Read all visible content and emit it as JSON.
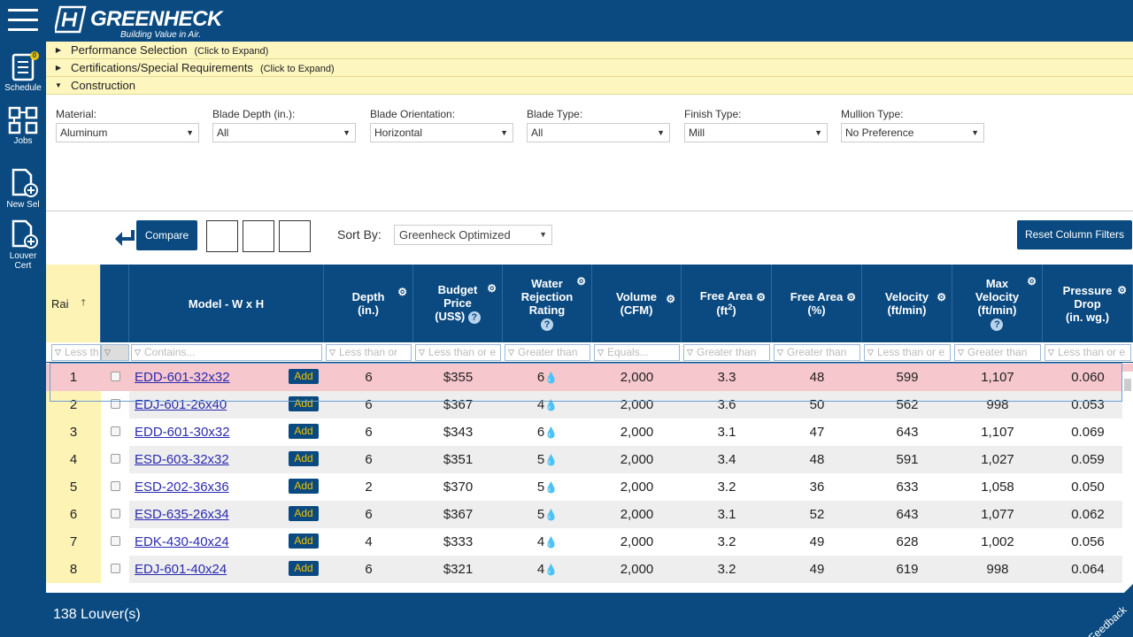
{
  "nav": {
    "items": [
      {
        "label": "Schedule",
        "icon": "schedule-icon",
        "badge": "0"
      },
      {
        "label": "Jobs",
        "icon": "jobs-icon"
      },
      {
        "label": "New Sel",
        "icon": "new-selection-icon"
      },
      {
        "label": "Louver Cert",
        "icon": "louver-cert-icon"
      }
    ]
  },
  "header": {
    "brand": "GREENHECK",
    "tagline": "Building Value in Air."
  },
  "accordion": [
    {
      "label": "Performance Selection",
      "hint": "(Click to Expand)",
      "expanded": false
    },
    {
      "label": "Certifications/Special Requirements",
      "hint": "(Click to Expand)",
      "expanded": false
    },
    {
      "label": "Construction",
      "hint": "",
      "expanded": true
    }
  ],
  "filters": [
    {
      "label": "Material:",
      "value": "Aluminum"
    },
    {
      "label": "Blade Depth (in.):",
      "value": "All"
    },
    {
      "label": "Blade Orientation:",
      "value": "Horizontal"
    },
    {
      "label": "Blade Type:",
      "value": "All"
    },
    {
      "label": "Finish Type:",
      "value": "Mill"
    },
    {
      "label": "Mullion Type:",
      "value": "No Preference"
    }
  ],
  "toolbar": {
    "compare_label": "Compare",
    "sort_label": "Sort By:",
    "sort_value": "Greenheck Optimized",
    "reset_label": "Reset Column Filters"
  },
  "table": {
    "headers": {
      "rank": "Rai",
      "model": "Model - W x H",
      "depth": [
        "Depth",
        "(in.)"
      ],
      "price": [
        "Budget",
        "Price",
        "(US$)"
      ],
      "water": [
        "Water",
        "Rejection",
        "Rating"
      ],
      "volume": [
        "Volume",
        "(CFM)"
      ],
      "freearea_ft": [
        "Free Area",
        "(ft",
        "2",
        ")"
      ],
      "freearea_pct": [
        "Free Area",
        "(%)"
      ],
      "velocity": [
        "Velocity",
        "(ft/min)"
      ],
      "maxvel": [
        "Max",
        "Velocity",
        "(ft/min)"
      ],
      "pdrop": [
        "Pressure",
        "Drop",
        "(in. wg.)"
      ]
    },
    "filter_placeholders": {
      "rank": "Less th",
      "model": "Contains...",
      "depth": "Less than or",
      "price": "Less than or e",
      "water": "Greater than",
      "volume": "Equals...",
      "freearea_ft": "Greater than",
      "freearea_pct": "Greater than",
      "velocity": "Less than or e",
      "maxvel": "Greater than",
      "pdrop": "Less than or e"
    },
    "add_label": "Add",
    "rows": [
      {
        "rank": "1",
        "model": "EDD-601-32x32",
        "depth": "6",
        "price": "$355",
        "water": "6",
        "volume": "2,000",
        "fa_ft": "3.3",
        "fa_pct": "48",
        "vel": "599",
        "maxvel": "1,107",
        "pd": "0.060"
      },
      {
        "rank": "2",
        "model": "EDJ-601-26x40",
        "depth": "6",
        "price": "$367",
        "water": "4",
        "volume": "2,000",
        "fa_ft": "3.6",
        "fa_pct": "50",
        "vel": "562",
        "maxvel": "998",
        "pd": "0.053"
      },
      {
        "rank": "3",
        "model": "EDD-601-30x32",
        "depth": "6",
        "price": "$343",
        "water": "6",
        "volume": "2,000",
        "fa_ft": "3.1",
        "fa_pct": "47",
        "vel": "643",
        "maxvel": "1,107",
        "pd": "0.069"
      },
      {
        "rank": "4",
        "model": "ESD-603-32x32",
        "depth": "6",
        "price": "$351",
        "water": "5",
        "volume": "2,000",
        "fa_ft": "3.4",
        "fa_pct": "48",
        "vel": "591",
        "maxvel": "1,027",
        "pd": "0.059"
      },
      {
        "rank": "5",
        "model": "ESD-202-36x36",
        "depth": "2",
        "price": "$370",
        "water": "5",
        "volume": "2,000",
        "fa_ft": "3.2",
        "fa_pct": "36",
        "vel": "633",
        "maxvel": "1,058",
        "pd": "0.050"
      },
      {
        "rank": "6",
        "model": "ESD-635-26x34",
        "depth": "6",
        "price": "$367",
        "water": "5",
        "volume": "2,000",
        "fa_ft": "3.1",
        "fa_pct": "52",
        "vel": "643",
        "maxvel": "1,077",
        "pd": "0.062"
      },
      {
        "rank": "7",
        "model": "EDK-430-40x24",
        "depth": "4",
        "price": "$333",
        "water": "4",
        "volume": "2,000",
        "fa_ft": "3.2",
        "fa_pct": "49",
        "vel": "628",
        "maxvel": "1,002",
        "pd": "0.056"
      },
      {
        "rank": "8",
        "model": "EDJ-601-40x24",
        "depth": "6",
        "price": "$321",
        "water": "4",
        "volume": "2,000",
        "fa_ft": "3.2",
        "fa_pct": "49",
        "vel": "619",
        "maxvel": "998",
        "pd": "0.064"
      }
    ]
  },
  "footer": {
    "count": "138 Louver(s)",
    "feedback": "Feedback"
  },
  "colors": {
    "brand": "#0a4a80",
    "accent": "#f2c200",
    "highlight": "#f6c7cd",
    "accordion": "#fdf6bf"
  }
}
